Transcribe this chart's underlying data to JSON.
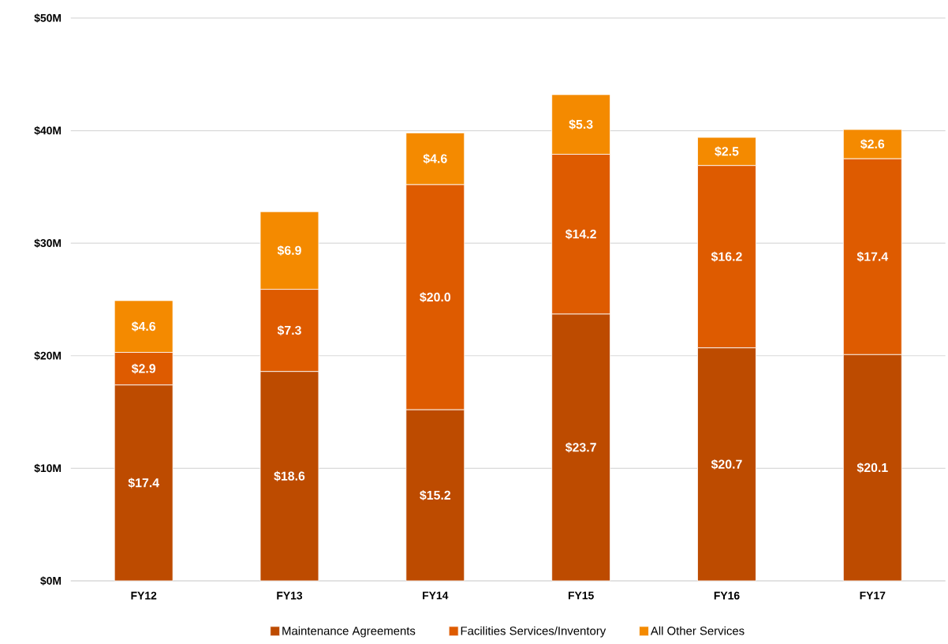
{
  "chart_data": {
    "type": "bar",
    "stacked": true,
    "categories": [
      "FY12",
      "FY13",
      "FY14",
      "FY15",
      "FY16",
      "FY17"
    ],
    "series": [
      {
        "name": "Maintenance Agreements",
        "color": "#bd4b00",
        "values": [
          17.4,
          18.6,
          15.2,
          23.7,
          20.7,
          20.1
        ],
        "value_labels": [
          "$17.4",
          "$18.6",
          "$15.2",
          "$23.7",
          "$20.7",
          "$20.1"
        ]
      },
      {
        "name": "Facilities Services/Inventory",
        "color": "#de5b00",
        "values": [
          2.9,
          7.3,
          20.0,
          14.2,
          16.2,
          17.4
        ],
        "value_labels": [
          "$2.9",
          "$7.3",
          "$20.0",
          "$14.2",
          "$16.2",
          "$17.4"
        ]
      },
      {
        "name": "All Other Services",
        "color": "#f48a00",
        "values": [
          4.6,
          6.9,
          4.6,
          5.3,
          2.5,
          2.6
        ],
        "value_labels": [
          "$4.6",
          "$6.9",
          "$4.6",
          "$5.3",
          "$2.5",
          "$2.6"
        ]
      }
    ],
    "ylim": [
      0,
      50
    ],
    "yticks": [
      {
        "value": 0,
        "label": "$0M"
      },
      {
        "value": 10,
        "label": "$10M"
      },
      {
        "value": 20,
        "label": "$20M"
      },
      {
        "value": 30,
        "label": "$30M"
      },
      {
        "value": 40,
        "label": "$40M"
      },
      {
        "value": 50,
        "label": "$50M"
      }
    ],
    "grid": "y",
    "legend": "bottom"
  }
}
